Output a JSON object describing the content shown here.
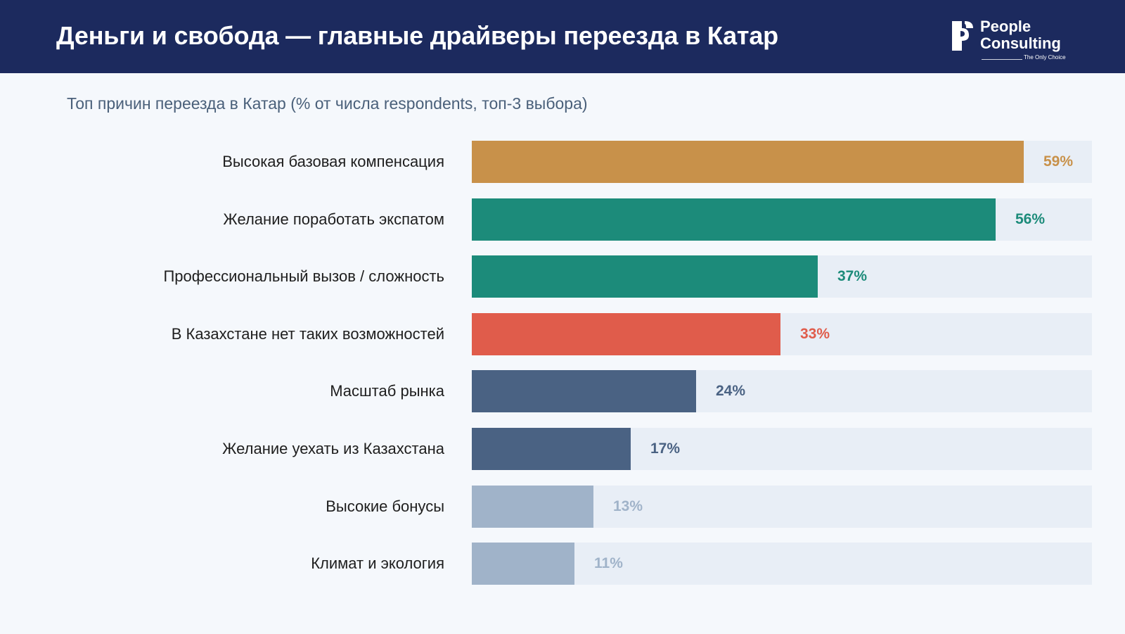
{
  "header": {
    "title": "Деньги и свобода — главные драйверы переезда в Катар",
    "logo": {
      "line1": "People",
      "line2": "Consulting",
      "tagline": "The Only Choice"
    }
  },
  "chart_data": {
    "type": "bar",
    "orientation": "horizontal",
    "title": "Топ причин переезда в Катар (% от числа respondents, топ-3 выбора)",
    "xlim": [
      0,
      65
    ],
    "unit": "%",
    "categories": [
      "Высокая базовая компенсация",
      "Желание поработать экспатом",
      "Профессиональный вызов / сложность",
      "В Казахстане нет таких возможностей",
      "Масштаб рынка",
      "Желание уехать из Казахстана",
      "Высокие бонусы",
      "Климат и экология"
    ],
    "values": [
      59,
      56,
      37,
      33,
      24,
      17,
      13,
      11
    ],
    "value_labels": [
      "59%",
      "56%",
      "37%",
      "33%",
      "24%",
      "17%",
      "13%",
      "11%"
    ],
    "colors": [
      "#c8914a",
      "#1c8b7a",
      "#1c8b7a",
      "#e05c4b",
      "#4a6283",
      "#4a6283",
      "#a0b3c9",
      "#a0b3c9"
    ],
    "label_colors": [
      "#c8914a",
      "#1c8b7a",
      "#1c8b7a",
      "#e05c4b",
      "#4a6283",
      "#4a6283",
      "#a0b3c9",
      "#a0b3c9"
    ],
    "track_color": "#e8eef6"
  }
}
